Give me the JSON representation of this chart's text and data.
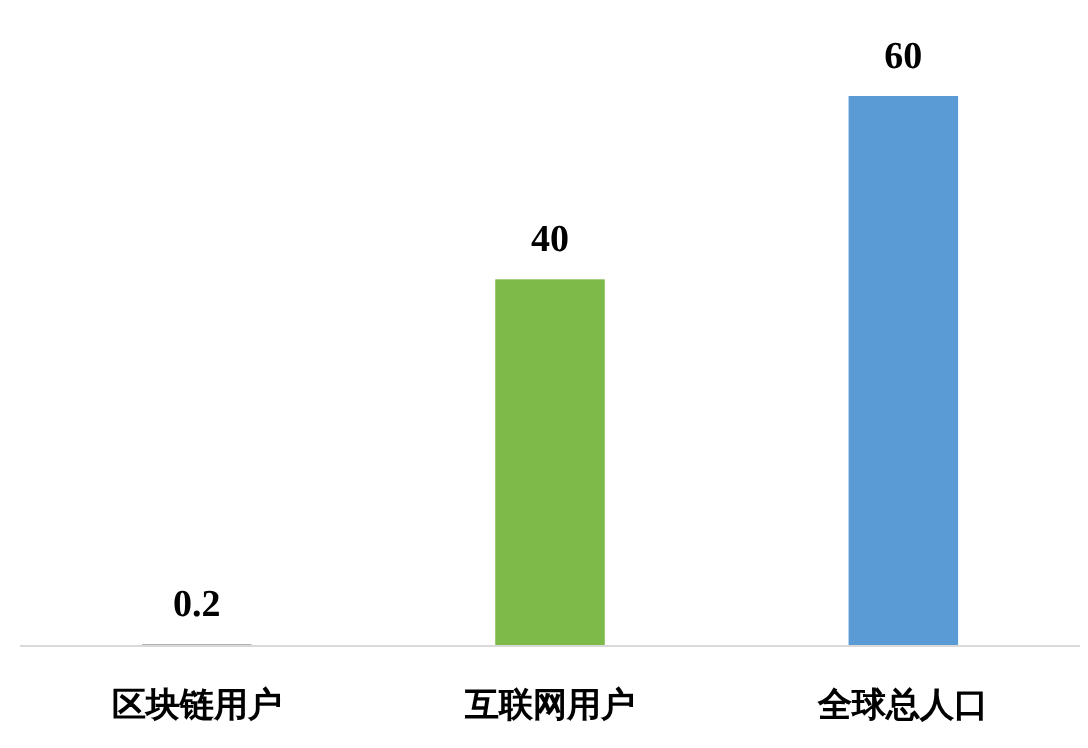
{
  "chart_data": {
    "type": "bar",
    "categories": [
      "区块链用户",
      "互联网用户",
      "全球总人口"
    ],
    "values": [
      0.2,
      40,
      60
    ],
    "colors": [
      "#a5a5a5",
      "#7dba4a",
      "#5b9bd5"
    ],
    "data_labels": true
  }
}
